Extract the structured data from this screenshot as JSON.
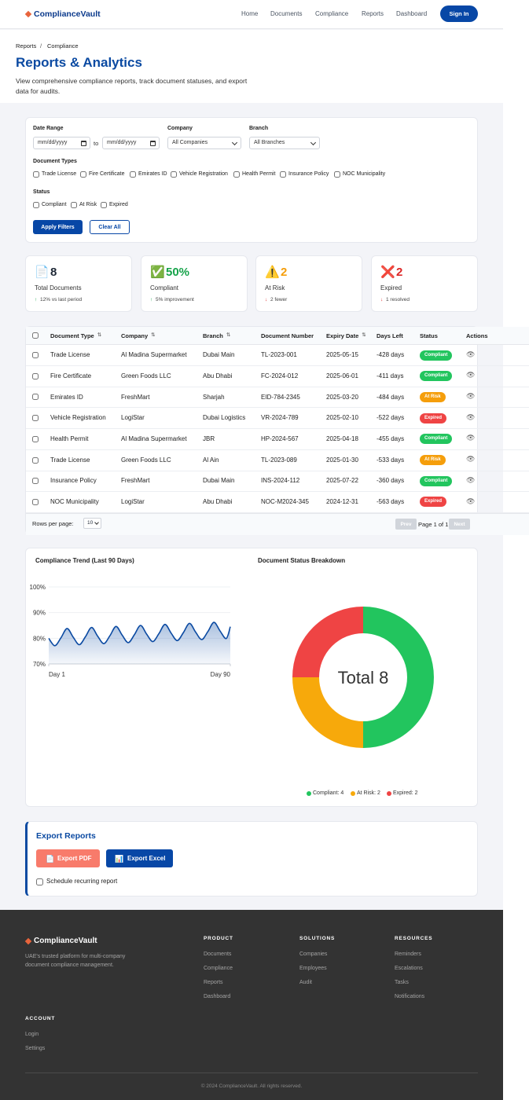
{
  "nav": {
    "brand": "ComplianceVault",
    "links": [
      "Home",
      "Documents",
      "Compliance",
      "Reports",
      "Dashboard"
    ],
    "button": "Sign In"
  },
  "breadcrumb": {
    "items": [
      "Reports",
      "Compliance"
    ],
    "separator": "/"
  },
  "header": {
    "title": "Reports & Analytics",
    "description": "View comprehensive compliance reports, track document statuses, and export data for audits."
  },
  "filters": {
    "date_label": "Date Range",
    "date_placeholder": [
      "mm/dd/yyyy",
      "mm/dd/yyyy"
    ],
    "date_to": "to",
    "company_label": "Company",
    "company_value": "All Companies",
    "branch_label": "Branch",
    "branch_value": "All Branches",
    "types_label": "Document Types",
    "types": [
      "Trade License",
      "Fire Certificate",
      "Emirates ID",
      "Vehicle Registration",
      "Health Permit",
      "Insurance Policy",
      "NOC Municipality"
    ],
    "status_label": "Status",
    "statuses": [
      "Compliant",
      "At Risk",
      "Expired"
    ],
    "apply": "Apply Filters",
    "clear": "Clear All"
  },
  "stats": [
    {
      "icon": "📄",
      "value": "8",
      "label": "Total Documents",
      "arrow": "↑",
      "change": "12% vs last period",
      "color": "#1f2937",
      "trend_color": "#16a34a"
    },
    {
      "icon": "✅",
      "value": "50%",
      "label": "Compliant",
      "arrow": "↑",
      "change": "5% improvement",
      "color": "#16a34a",
      "trend_color": "#16a34a"
    },
    {
      "icon": "⚠️",
      "value": "2",
      "label": "At Risk",
      "arrow": "↓",
      "change": "2 fewer",
      "color": "#f59e0b",
      "trend_color": "#dc2626"
    },
    {
      "icon": "❌",
      "value": "2",
      "label": "Expired",
      "arrow": "↓",
      "change": "1 resolved",
      "color": "#dc2626",
      "trend_color": "#dc2626"
    }
  ],
  "table": {
    "headers": [
      {
        "label": "Document Type",
        "sortable": true
      },
      {
        "label": "Company",
        "sortable": true
      },
      {
        "label": "Branch",
        "sortable": true
      },
      {
        "label": "Document Number",
        "sortable": false
      },
      {
        "label": "Expiry Date",
        "sortable": true
      },
      {
        "label": "Days Left",
        "sortable": false
      },
      {
        "label": "Status",
        "sortable": false
      },
      {
        "label": "Actions",
        "sortable": false
      }
    ],
    "sort_icon": "⇅",
    "action_icon": "👁",
    "rows": [
      [
        "Trade License",
        "Al Madina Supermarket",
        "Dubai Main",
        "TL-2023-001",
        "2025-05-15",
        "-428 days",
        "Compliant"
      ],
      [
        "Fire Certificate",
        "Green Foods LLC",
        "Abu Dhabi",
        "FC-2024-012",
        "2025-06-01",
        "-411 days",
        "Compliant"
      ],
      [
        "Emirates ID",
        "FreshMart",
        "Sharjah",
        "EID-784-2345",
        "2025-03-20",
        "-484 days",
        "At Risk"
      ],
      [
        "Vehicle Registration",
        "LogiStar",
        "Dubai Logistics",
        "VR-2024-789",
        "2025-02-10",
        "-522 days",
        "Expired"
      ],
      [
        "Health Permit",
        "Al Madina Supermarket",
        "JBR",
        "HP-2024-567",
        "2025-04-18",
        "-455 days",
        "Compliant"
      ],
      [
        "Trade License",
        "Green Foods LLC",
        "Al Ain",
        "TL-2023-089",
        "2025-01-30",
        "-533 days",
        "At Risk"
      ],
      [
        "Insurance Policy",
        "FreshMart",
        "Dubai Main",
        "INS-2024-112",
        "2025-07-22",
        "-360 days",
        "Compliant"
      ],
      [
        "NOC Municipality",
        "LogiStar",
        "Abu Dhabi",
        "NOC-M2024-345",
        "2024-12-31",
        "-563 days",
        "Expired"
      ]
    ],
    "status_colors": {
      "Compliant": "#22c55e",
      "At Risk": "#f59e0b",
      "Expired": "#ef4444"
    },
    "rows_label": "Rows per page:",
    "rows_value": "10",
    "prev": "Prev",
    "page": "Page 1 of 1",
    "next": "Next"
  },
  "chart_data": [
    {
      "type": "line",
      "title": "Compliance Trend (Last 90 Days)",
      "x": [
        1,
        4,
        7,
        10,
        13,
        16,
        19,
        22,
        25,
        28,
        31,
        34,
        37,
        40,
        43,
        46,
        49,
        52,
        55,
        58,
        61,
        64,
        67,
        70,
        73,
        76,
        79,
        82,
        85,
        88,
        90
      ],
      "values": [
        80.0,
        77.1,
        80.2,
        83.8,
        80.4,
        77.5,
        80.6,
        84.2,
        80.8,
        77.9,
        81.0,
        84.6,
        81.2,
        78.3,
        81.4,
        85.0,
        81.6,
        78.7,
        81.8,
        85.4,
        82.0,
        79.1,
        82.2,
        85.8,
        82.4,
        79.5,
        82.6,
        86.2,
        82.8,
        79.9,
        84.5
      ],
      "color": "#0b4aa2",
      "xlim": [
        1,
        90
      ],
      "xticks": [
        {
          "value": 1,
          "label": "Day 1"
        },
        {
          "value": 90,
          "label": "Day 90"
        }
      ],
      "ylim": [
        70,
        100
      ],
      "yticks": [
        {
          "value": 70,
          "label": "70%"
        },
        {
          "value": 80,
          "label": "80%"
        },
        {
          "value": 90,
          "label": "90%"
        },
        {
          "value": 100,
          "label": "100%"
        }
      ],
      "grid": true
    },
    {
      "type": "pie",
      "title": "Document Status Breakdown",
      "values": [
        4,
        2,
        2
      ],
      "value_labels": [
        "Compliant: 4",
        "At Risk: 2",
        "Expired: 2"
      ],
      "colors": [
        "#22c55e",
        "#f7a90b",
        "#ef4444"
      ],
      "donut": true,
      "center_label": "Total 8"
    }
  ],
  "export": {
    "title": "Export Reports",
    "pdf_icon": "📄",
    "pdf": "Export PDF",
    "excel_icon": "📊",
    "excel": "Export Excel",
    "schedule": "Schedule recurring report"
  },
  "footer": {
    "brand": "ComplianceVault",
    "tagline": "UAE's trusted platform for multi-company document compliance management.",
    "columns": [
      {
        "title": "PRODUCT",
        "links": [
          "Documents",
          "Compliance",
          "Reports",
          "Dashboard"
        ]
      },
      {
        "title": "SOLUTIONS",
        "links": [
          "Companies",
          "Employees",
          "Audit"
        ]
      },
      {
        "title": "RESOURCES",
        "links": [
          "Reminders",
          "Escalations",
          "Tasks",
          "Notifications"
        ]
      },
      {
        "title": "ACCOUNT",
        "links": [
          "Login",
          "Settings"
        ]
      }
    ],
    "copyright": "© 2024 ComplianceVault. All rights reserved."
  }
}
